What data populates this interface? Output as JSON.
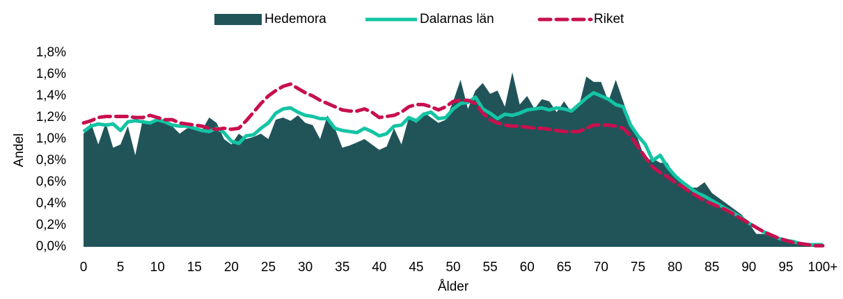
{
  "chart_data": {
    "type": "line",
    "ylabel": "Andel",
    "xlabel": "Ålder",
    "categories": [
      "0",
      null,
      null,
      null,
      null,
      "5",
      null,
      null,
      null,
      null,
      "10",
      null,
      null,
      null,
      null,
      "15",
      null,
      null,
      null,
      null,
      "20",
      null,
      null,
      null,
      null,
      "25",
      null,
      null,
      null,
      null,
      "30",
      null,
      null,
      null,
      null,
      "35",
      null,
      null,
      null,
      null,
      "40",
      null,
      null,
      null,
      null,
      "45",
      null,
      null,
      null,
      null,
      "50",
      null,
      null,
      null,
      null,
      "55",
      null,
      null,
      null,
      null,
      "60",
      null,
      null,
      null,
      null,
      "65",
      null,
      null,
      null,
      null,
      "70",
      null,
      null,
      null,
      null,
      "75",
      null,
      null,
      null,
      null,
      "80",
      null,
      null,
      null,
      null,
      "85",
      null,
      null,
      null,
      null,
      "90",
      null,
      null,
      null,
      null,
      "95",
      null,
      null,
      null,
      null,
      "100+"
    ],
    "ylim": [
      0,
      1.8
    ],
    "yticks": [
      {
        "value": 0,
        "label": "0,0%"
      },
      {
        "value": 0.2,
        "label": "0,2%"
      },
      {
        "value": 0.4,
        "label": "0,4%"
      },
      {
        "value": 0.6,
        "label": "0,6%"
      },
      {
        "value": 0.8,
        "label": "0,8%"
      },
      {
        "value": 1.0,
        "label": "1,0%"
      },
      {
        "value": 1.2,
        "label": "1,2%"
      },
      {
        "value": 1.4,
        "label": "1,4%"
      },
      {
        "value": 1.6,
        "label": "1,6%"
      },
      {
        "value": 1.8,
        "label": "1,8%"
      }
    ],
    "legend": "top",
    "series": [
      {
        "name": "Hedemora",
        "type": "area",
        "color": "#215459",
        "values": [
          1.05,
          1.15,
          0.95,
          1.15,
          0.92,
          0.95,
          1.12,
          0.85,
          1.18,
          1.15,
          1.2,
          1.15,
          1.12,
          1.05,
          1.1,
          1.1,
          1.08,
          1.2,
          1.15,
          1.0,
          0.95,
          1.05,
          1.0,
          1.02,
          1.05,
          1.0,
          1.18,
          1.2,
          1.17,
          1.22,
          1.15,
          1.13,
          1.0,
          1.22,
          1.1,
          0.92,
          0.94,
          0.97,
          1.0,
          0.95,
          0.9,
          0.93,
          1.1,
          0.95,
          1.2,
          1.15,
          1.25,
          1.2,
          1.15,
          1.18,
          1.35,
          1.55,
          1.28,
          1.45,
          1.52,
          1.42,
          1.45,
          1.3,
          1.62,
          1.32,
          1.4,
          1.28,
          1.37,
          1.35,
          1.25,
          1.35,
          1.25,
          1.3,
          1.58,
          1.53,
          1.53,
          1.35,
          1.55,
          1.35,
          1.15,
          1.0,
          0.8,
          0.82,
          0.78,
          0.78,
          0.65,
          0.6,
          0.55,
          0.55,
          0.6,
          0.5,
          0.45,
          0.4,
          0.35,
          0.3,
          0.22,
          0.12,
          0.12,
          0.1,
          0.09,
          0.05,
          0.05,
          0.03,
          0.02,
          0.02,
          0.03
        ]
      },
      {
        "name": "Dalarnas län",
        "type": "line",
        "color": "#14c4a4",
        "values": [
          1.07,
          1.12,
          1.14,
          1.13,
          1.14,
          1.08,
          1.16,
          1.17,
          1.16,
          1.15,
          1.18,
          1.16,
          1.13,
          1.12,
          1.12,
          1.1,
          1.08,
          1.07,
          1.1,
          1.06,
          0.98,
          0.96,
          1.03,
          1.04,
          1.1,
          1.15,
          1.24,
          1.28,
          1.29,
          1.25,
          1.22,
          1.21,
          1.19,
          1.19,
          1.1,
          1.08,
          1.07,
          1.06,
          1.1,
          1.07,
          1.03,
          1.05,
          1.12,
          1.13,
          1.2,
          1.17,
          1.23,
          1.25,
          1.19,
          1.2,
          1.28,
          1.33,
          1.34,
          1.39,
          1.28,
          1.24,
          1.19,
          1.23,
          1.22,
          1.24,
          1.27,
          1.28,
          1.29,
          1.27,
          1.29,
          1.28,
          1.26,
          1.32,
          1.38,
          1.43,
          1.4,
          1.37,
          1.32,
          1.3,
          1.13,
          1.03,
          0.95,
          0.8,
          0.85,
          0.74,
          0.66,
          0.6,
          0.55,
          0.5,
          0.47,
          0.43,
          0.39,
          0.35,
          0.31,
          0.27,
          0.22,
          0.18,
          0.14,
          0.11,
          0.08,
          0.06,
          0.05,
          0.03,
          0.02,
          0.02,
          0.02
        ]
      },
      {
        "name": "Riket",
        "type": "line",
        "dashed": true,
        "color": "#c8104e",
        "values": [
          1.15,
          1.17,
          1.2,
          1.21,
          1.21,
          1.21,
          1.21,
          1.2,
          1.2,
          1.22,
          1.2,
          1.18,
          1.18,
          1.15,
          1.14,
          1.13,
          1.12,
          1.1,
          1.09,
          1.1,
          1.09,
          1.1,
          1.17,
          1.25,
          1.33,
          1.4,
          1.45,
          1.49,
          1.51,
          1.47,
          1.43,
          1.4,
          1.36,
          1.33,
          1.3,
          1.27,
          1.26,
          1.26,
          1.28,
          1.25,
          1.2,
          1.21,
          1.22,
          1.25,
          1.3,
          1.32,
          1.32,
          1.3,
          1.27,
          1.3,
          1.35,
          1.36,
          1.36,
          1.33,
          1.24,
          1.18,
          1.15,
          1.13,
          1.12,
          1.12,
          1.11,
          1.1,
          1.1,
          1.09,
          1.08,
          1.07,
          1.07,
          1.07,
          1.1,
          1.13,
          1.13,
          1.13,
          1.12,
          1.1,
          1.03,
          0.93,
          0.83,
          0.74,
          0.69,
          0.65,
          0.6,
          0.56,
          0.51,
          0.47,
          0.43,
          0.4,
          0.37,
          0.34,
          0.3,
          0.26,
          0.22,
          0.18,
          0.14,
          0.11,
          0.08,
          0.06,
          0.04,
          0.03,
          0.02,
          0.01,
          0.01
        ]
      }
    ]
  }
}
